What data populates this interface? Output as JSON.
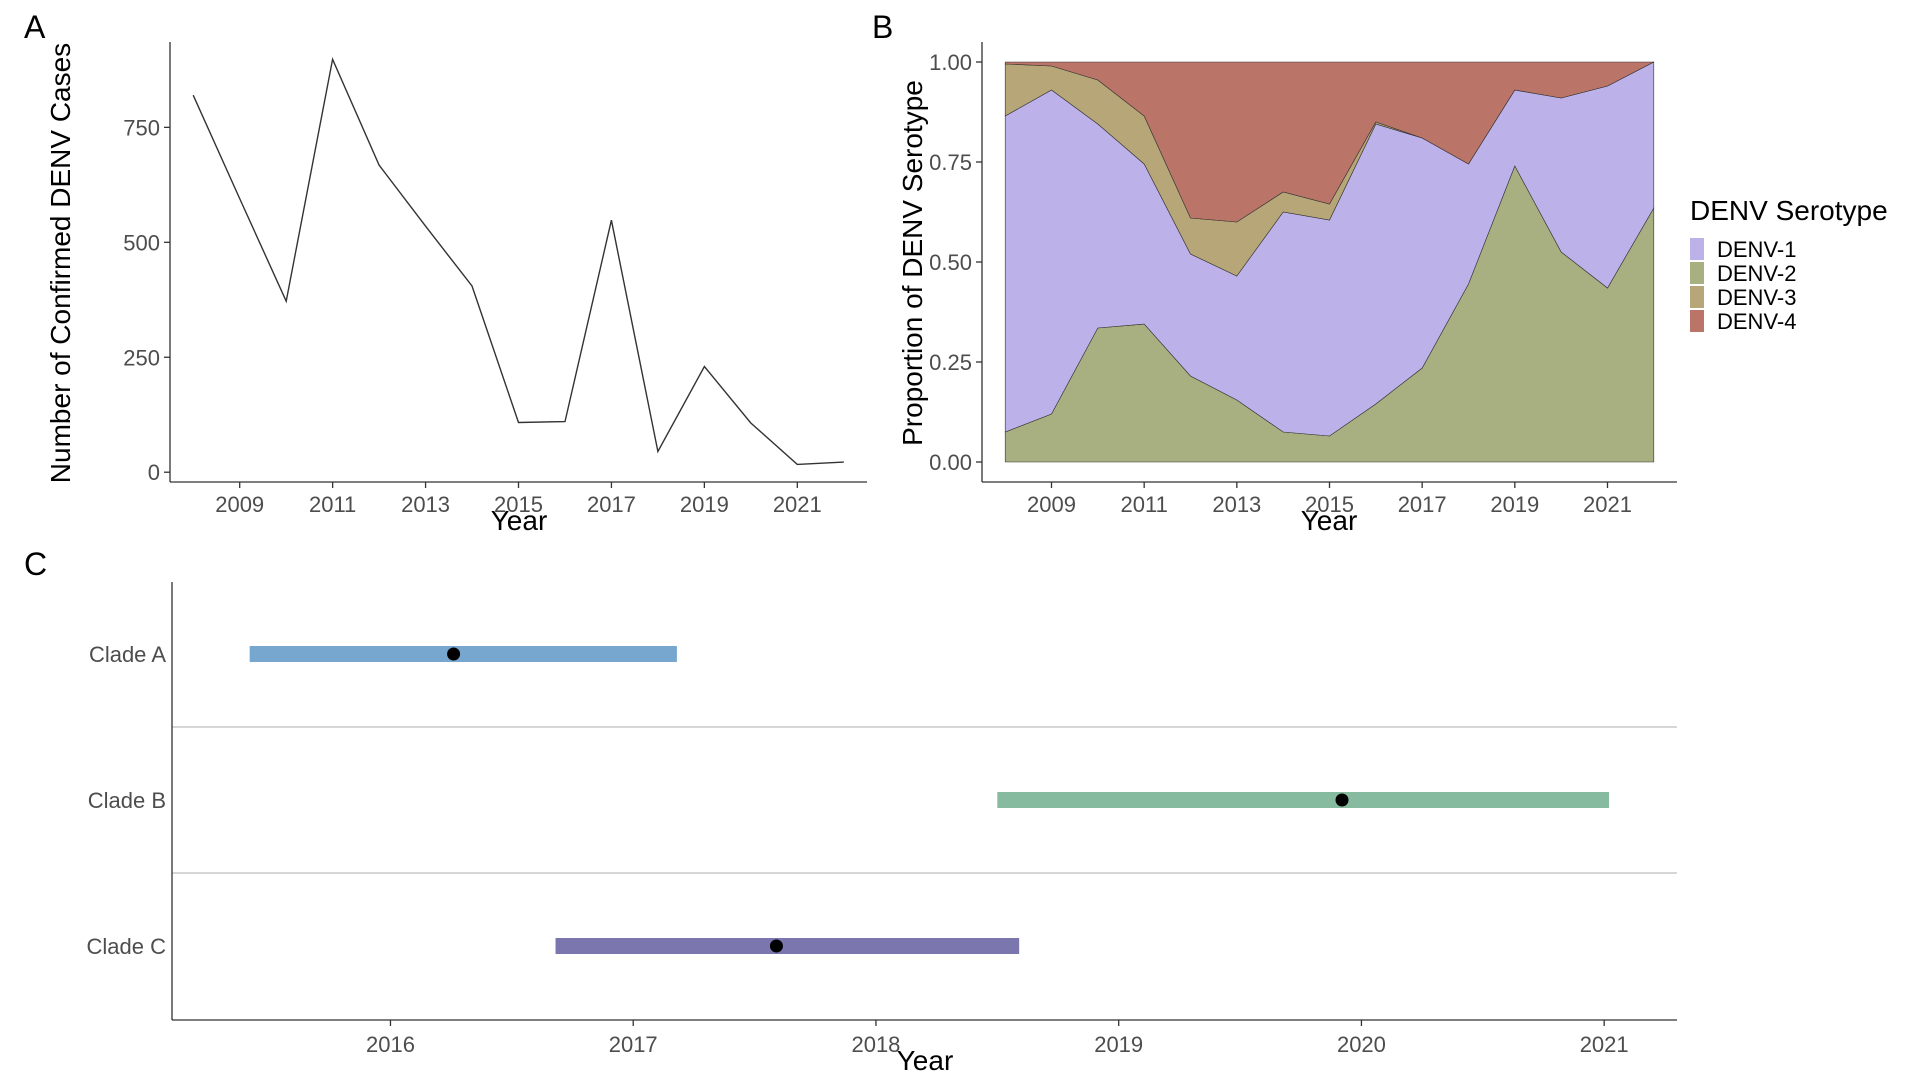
{
  "panels": {
    "a": "A",
    "b": "B",
    "c": "C"
  },
  "legend": {
    "title": "DENV Serotype",
    "position": "right"
  },
  "chart_data": [
    {
      "panel": "A",
      "type": "line",
      "xlabel": "Year",
      "ylabel": "Number of Confirmed DENV Cases",
      "xlim": [
        2007.5,
        2022.5
      ],
      "ylim": [
        -30,
        940
      ],
      "x_ticks": [
        2009,
        2011,
        2013,
        2015,
        2017,
        2019,
        2021
      ],
      "y_ticks": [
        0,
        250,
        500,
        750
      ],
      "grid": false,
      "line_color": "#333333",
      "x": [
        2008,
        2009,
        2010,
        2011,
        2012,
        2013,
        2014,
        2015,
        2016,
        2017,
        2018,
        2019,
        2020,
        2021,
        2022
      ],
      "y": [
        820,
        595,
        372,
        898,
        668,
        535,
        405,
        108,
        110,
        548,
        45,
        230,
        107,
        17,
        22
      ]
    },
    {
      "panel": "B",
      "type": "area",
      "stacked": true,
      "xlabel": "Year",
      "ylabel": "Proportion of DENV Serotype",
      "xlim": [
        2007.5,
        2022.5
      ],
      "ylim": [
        -0.05,
        1.05
      ],
      "x_ticks": [
        2009,
        2011,
        2013,
        2015,
        2017,
        2019,
        2021
      ],
      "y_ticks": [
        "0.00",
        "0.25",
        "0.50",
        "0.75",
        "1.00"
      ],
      "grid": false,
      "x": [
        2008,
        2009,
        2010,
        2011,
        2012,
        2013,
        2014,
        2015,
        2016,
        2017,
        2018,
        2019,
        2020,
        2021,
        2022
      ],
      "series": [
        {
          "name": "DENV-2",
          "color": "#a8b081",
          "values": [
            0.075,
            0.12,
            0.335,
            0.345,
            0.215,
            0.155,
            0.075,
            0.065,
            0.145,
            0.235,
            0.445,
            0.74,
            0.525,
            0.435,
            0.635
          ]
        },
        {
          "name": "DENV-1",
          "color": "#bdb1e9",
          "values": [
            0.79,
            0.81,
            0.51,
            0.4,
            0.305,
            0.31,
            0.55,
            0.54,
            0.7,
            0.575,
            0.3,
            0.19,
            0.385,
            0.505,
            0.365
          ]
        },
        {
          "name": "DENV-3",
          "color": "#b7a678",
          "values": [
            0.13,
            0.06,
            0.11,
            0.12,
            0.09,
            0.135,
            0.05,
            0.04,
            0.005,
            0.0,
            0.0,
            0.0,
            0.0,
            0.0,
            0.0
          ]
        },
        {
          "name": "DENV-4",
          "color": "#ba7468",
          "values": [
            0.005,
            0.01,
            0.045,
            0.135,
            0.39,
            0.4,
            0.325,
            0.355,
            0.15,
            0.19,
            0.255,
            0.07,
            0.09,
            0.06,
            0.0
          ]
        }
      ],
      "legend_order": [
        "DENV-1",
        "DENV-2",
        "DENV-3",
        "DENV-4"
      ]
    },
    {
      "panel": "C",
      "type": "interval",
      "xlabel": "Year",
      "xlim": [
        2015.1,
        2021.3
      ],
      "x_ticks": [
        2016,
        2017,
        2018,
        2019,
        2020,
        2021
      ],
      "categories": [
        "Clade A",
        "Clade B",
        "Clade C"
      ],
      "intervals": [
        {
          "label": "Clade A",
          "start": 2015.42,
          "end": 2017.18,
          "point": 2016.26,
          "color": "#77a7cf"
        },
        {
          "label": "Clade B",
          "start": 2018.5,
          "end": 2021.02,
          "point": 2019.92,
          "color": "#86bba0"
        },
        {
          "label": "Clade C",
          "start": 2016.68,
          "end": 2018.59,
          "point": 2017.59,
          "color": "#7b76ad"
        }
      ],
      "point_color": "#000000",
      "separator_color": "#c8c8c8"
    }
  ]
}
